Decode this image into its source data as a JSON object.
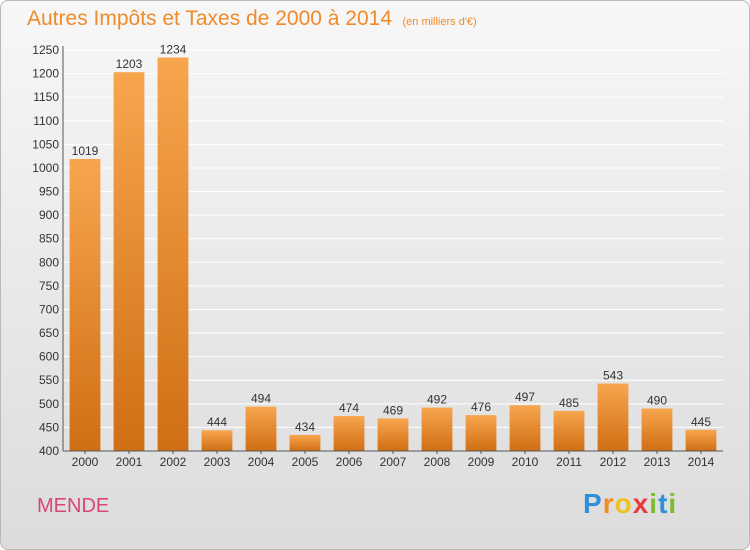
{
  "header": {
    "title": "Autres Impôts et Taxes de 2000 à 2014",
    "subtitle": "(en milliers d'€)"
  },
  "footer": {
    "city": "MENDE",
    "logo_letters": [
      "P",
      "r",
      "o",
      "x",
      "i",
      "t",
      "i"
    ]
  },
  "colors": {
    "bar_top": "#f7a64e",
    "bar_bottom": "#d06e14",
    "title": "#f08a2a",
    "city": "#d9467a",
    "grid": "#ffffff"
  },
  "chart_data": {
    "type": "bar",
    "title": "Autres Impôts et Taxes de 2000 à 2014",
    "subtitle": "(en milliers d'€)",
    "xlabel": "",
    "ylabel": "",
    "categories": [
      "2000",
      "2001",
      "2002",
      "2003",
      "2004",
      "2005",
      "2006",
      "2007",
      "2008",
      "2009",
      "2010",
      "2011",
      "2012",
      "2013",
      "2014"
    ],
    "values": [
      1019,
      1203,
      1234,
      444,
      494,
      434,
      474,
      469,
      492,
      476,
      497,
      485,
      543,
      490,
      445
    ],
    "ylim": [
      400,
      1250
    ],
    "yticks": [
      400,
      450,
      500,
      550,
      600,
      650,
      700,
      750,
      800,
      850,
      900,
      950,
      1000,
      1050,
      1100,
      1150,
      1200,
      1250
    ],
    "grid": true,
    "data_labels": true
  }
}
